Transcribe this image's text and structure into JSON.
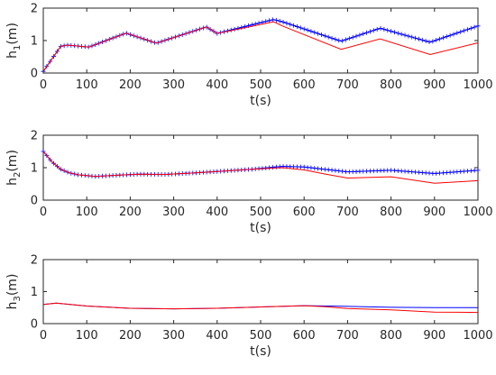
{
  "chart_data": [
    {
      "type": "line",
      "xlabel": "t(s)",
      "ylabel": {
        "base": "h",
        "sub": "1",
        "tail": "(m)"
      },
      "xlim": [
        0,
        1000
      ],
      "ylim": [
        0,
        2
      ],
      "xticks": [
        0,
        100,
        200,
        300,
        400,
        500,
        600,
        700,
        800,
        900,
        1000
      ],
      "yticks": [
        0,
        1,
        2
      ],
      "grid": false,
      "series": [
        {
          "color": "#0000ff",
          "style": "plus-markers",
          "x": [
            0,
            40,
            55,
            105,
            190,
            260,
            375,
            400,
            530,
            550,
            685,
            775,
            890,
            1000
          ],
          "y": [
            0.05,
            0.82,
            0.86,
            0.8,
            1.23,
            0.92,
            1.42,
            1.22,
            1.65,
            1.58,
            0.98,
            1.38,
            0.95,
            1.45
          ]
        },
        {
          "color": "#ff0000",
          "style": "line",
          "x": [
            0,
            40,
            55,
            105,
            190,
            260,
            375,
            400,
            530,
            550,
            685,
            775,
            890,
            1000
          ],
          "y": [
            0.05,
            0.82,
            0.86,
            0.8,
            1.23,
            0.92,
            1.42,
            1.22,
            1.58,
            1.45,
            0.73,
            1.05,
            0.57,
            0.93
          ]
        }
      ]
    },
    {
      "type": "line",
      "xlabel": "t(s)",
      "ylabel": {
        "base": "h",
        "sub": "2",
        "tail": "(m)"
      },
      "xlim": [
        0,
        1000
      ],
      "ylim": [
        0,
        2
      ],
      "xticks": [
        0,
        100,
        200,
        300,
        400,
        500,
        600,
        700,
        800,
        900,
        1000
      ],
      "yticks": [
        0,
        1,
        2
      ],
      "grid": false,
      "series": [
        {
          "color": "#0000ff",
          "style": "plus-markers",
          "x": [
            0,
            20,
            40,
            60,
            80,
            120,
            160,
            220,
            280,
            350,
            420,
            480,
            550,
            600,
            700,
            800,
            900,
            1000
          ],
          "y": [
            1.5,
            1.18,
            0.95,
            0.84,
            0.78,
            0.73,
            0.76,
            0.8,
            0.79,
            0.84,
            0.9,
            0.95,
            1.04,
            1.02,
            0.87,
            0.92,
            0.82,
            0.92
          ]
        },
        {
          "color": "#ff0000",
          "style": "line",
          "x": [
            0,
            20,
            40,
            60,
            80,
            120,
            160,
            220,
            280,
            350,
            420,
            480,
            550,
            600,
            650,
            700,
            800,
            900,
            1000
          ],
          "y": [
            1.5,
            1.18,
            0.95,
            0.84,
            0.78,
            0.73,
            0.76,
            0.8,
            0.79,
            0.84,
            0.9,
            0.95,
            1.0,
            0.93,
            0.8,
            0.68,
            0.72,
            0.52,
            0.6
          ]
        }
      ]
    },
    {
      "type": "line",
      "xlabel": "t(s)",
      "ylabel": {
        "base": "h",
        "sub": "3",
        "tail": "(m)"
      },
      "xlim": [
        0,
        1000
      ],
      "ylim": [
        0,
        2
      ],
      "xticks": [
        0,
        100,
        200,
        300,
        400,
        500,
        600,
        700,
        800,
        900,
        1000
      ],
      "yticks": [
        0,
        1,
        2
      ],
      "grid": false,
      "series": [
        {
          "color": "#0000ff",
          "style": "line",
          "x": [
            0,
            30,
            100,
            200,
            300,
            400,
            500,
            600,
            700,
            800,
            900,
            1000
          ],
          "y": [
            0.6,
            0.64,
            0.55,
            0.48,
            0.46,
            0.48,
            0.52,
            0.56,
            0.54,
            0.51,
            0.5,
            0.5
          ]
        },
        {
          "color": "#ff0000",
          "style": "line",
          "x": [
            0,
            30,
            100,
            200,
            300,
            400,
            500,
            600,
            650,
            700,
            800,
            900,
            1000
          ],
          "y": [
            0.6,
            0.64,
            0.55,
            0.48,
            0.46,
            0.48,
            0.52,
            0.56,
            0.53,
            0.47,
            0.43,
            0.36,
            0.35
          ]
        }
      ]
    }
  ]
}
